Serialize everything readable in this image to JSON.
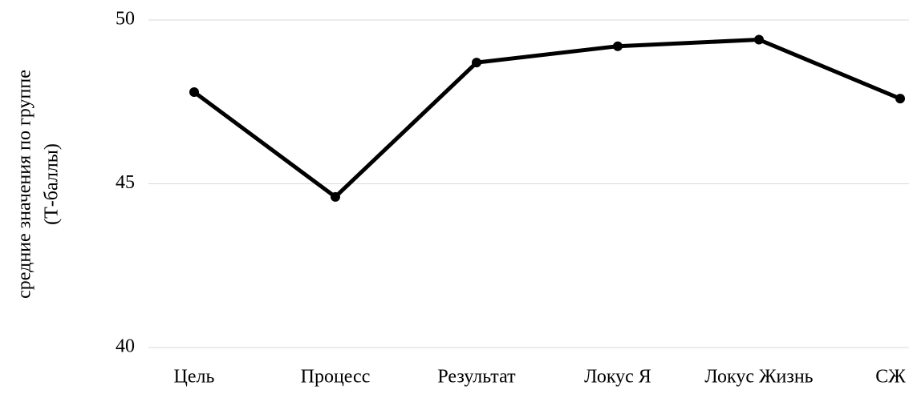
{
  "chart_data": {
    "type": "line",
    "ylabel": [
      "средние значения по группе",
      "(Т-баллы)"
    ],
    "categories": [
      "Цель",
      "Процесс",
      "Результат",
      "Локус Я",
      "Локус Жизнь",
      "СЖ"
    ],
    "series": [
      {
        "color": "#000000",
        "values": [
          47.8,
          44.6,
          48.7,
          49.2,
          49.4,
          47.6
        ]
      }
    ],
    "ylim": [
      40,
      50
    ],
    "yticks": [
      40,
      45,
      50
    ],
    "grid": true
  }
}
